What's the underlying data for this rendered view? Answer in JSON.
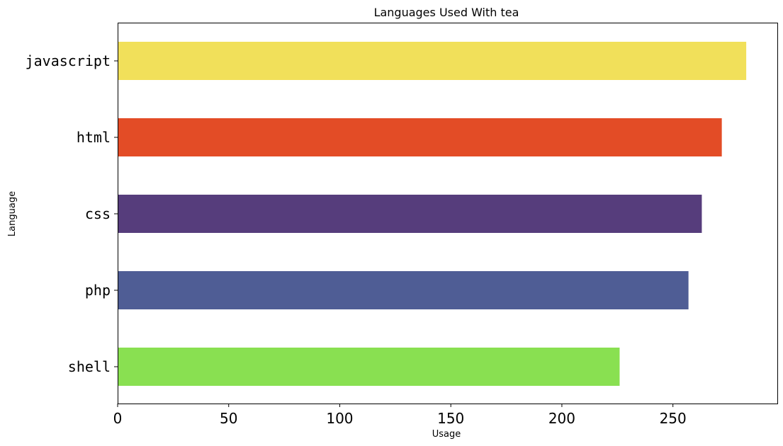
{
  "chart_data": {
    "type": "bar",
    "orientation": "horizontal",
    "title": "Languages Used With tea",
    "xlabel": "Usage",
    "ylabel": "Language",
    "categories": [
      "javascript",
      "html",
      "css",
      "php",
      "shell"
    ],
    "values": [
      283,
      272,
      263,
      257,
      226
    ],
    "colors": [
      "#f1e05a",
      "#e34c26",
      "#563d7c",
      "#4F5D95",
      "#89e051"
    ],
    "xlim": [
      0,
      297
    ],
    "xticks": [
      0,
      50,
      100,
      150,
      200,
      250
    ],
    "grid": false,
    "legend": "none"
  }
}
